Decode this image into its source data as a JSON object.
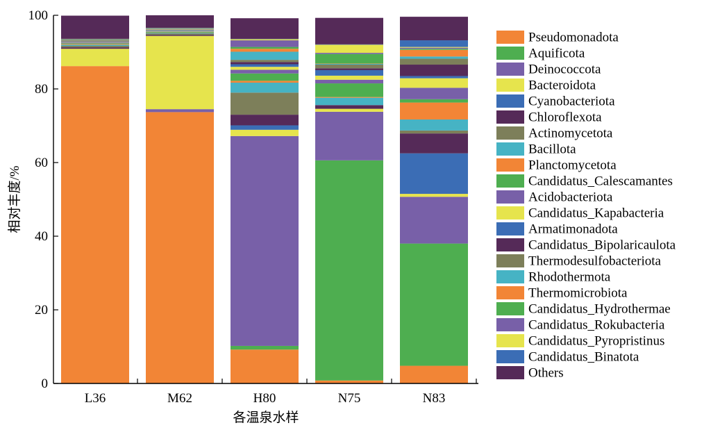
{
  "chart_data": {
    "type": "bar",
    "stacked": true,
    "xlabel": "各温泉水样",
    "ylabel": "相对丰度/%",
    "ylim": [
      0,
      100
    ],
    "yticks": [
      0,
      20,
      40,
      60,
      80,
      100
    ],
    "legend_position": "right",
    "categories": [
      "L36",
      "M62",
      "H80",
      "N75",
      "N83"
    ],
    "series": [
      {
        "name": "Pseudomonadota",
        "color": "#f28536",
        "values": [
          86.2,
          73.7,
          9.2,
          0.8,
          4.8
        ]
      },
      {
        "name": "Aquificota",
        "color": "#4eae50",
        "values": [
          0,
          0,
          1.0,
          59.8,
          33.2
        ]
      },
      {
        "name": "Deinococcota",
        "color": "#7860a8",
        "values": [
          0,
          0.8,
          57.0,
          13.2,
          12.7
        ]
      },
      {
        "name": "Bacteroidota",
        "color": "#e6e44d",
        "values": [
          4.7,
          19.9,
          1.7,
          0.8,
          0.8
        ]
      },
      {
        "name": "Cyanobacteriota",
        "color": "#3b6db5",
        "values": [
          0,
          0,
          1.2,
          0,
          11.0
        ]
      },
      {
        "name": "Chloroflexota",
        "color": "#552a58",
        "values": [
          0.4,
          0.3,
          2.9,
          1.0,
          5.4
        ]
      },
      {
        "name": "Actinomycetota",
        "color": "#7d7f5a",
        "values": [
          0.4,
          0.3,
          6.0,
          0,
          0.8
        ]
      },
      {
        "name": "Bacillota",
        "color": "#46b3c4",
        "values": [
          0.3,
          0.2,
          2.7,
          2.0,
          3.0
        ]
      },
      {
        "name": "Planctomycetota",
        "color": "#f28536",
        "values": [
          0.2,
          0.1,
          0.5,
          0.2,
          4.6
        ]
      },
      {
        "name": "Candidatus_Calescamantes",
        "color": "#4eae50",
        "values": [
          0.2,
          0.2,
          2.0,
          3.7,
          0.9
        ]
      },
      {
        "name": "Acidobacteriota",
        "color": "#7860a8",
        "values": [
          0.2,
          0.1,
          1.0,
          1.0,
          3.1
        ]
      },
      {
        "name": "Candidatus_Kapabacteria",
        "color": "#e6e44d",
        "values": [
          0.1,
          0.1,
          0.8,
          1.1,
          2.6
        ]
      },
      {
        "name": "Armatimonadota",
        "color": "#3b6db5",
        "values": [
          0.1,
          0.1,
          0.7,
          1.5,
          0.6
        ]
      },
      {
        "name": "Candidatus_Bipolaricaulota",
        "color": "#552a58",
        "values": [
          0.1,
          0.1,
          0.6,
          0.5,
          3.1
        ]
      },
      {
        "name": "Thermodesulfobacteriota",
        "color": "#7d7f5a",
        "values": [
          0.1,
          0.1,
          0.6,
          1.0,
          1.6
        ]
      },
      {
        "name": "Rhodothermota",
        "color": "#46b3c4",
        "values": [
          0.1,
          0.1,
          2.2,
          0.2,
          0.6
        ]
      },
      {
        "name": "Thermomicrobiota",
        "color": "#f28536",
        "values": [
          0.1,
          0.1,
          0.8,
          0.1,
          1.8
        ]
      },
      {
        "name": "Candidatus_Hydrothermae",
        "color": "#4eae50",
        "values": [
          0.1,
          0.1,
          0.5,
          2.6,
          0.3
        ]
      },
      {
        "name": "Candidatus_Rokubacteria",
        "color": "#7860a8",
        "values": [
          0.1,
          0.1,
          1.8,
          0.3,
          0.3
        ]
      },
      {
        "name": "Candidatus_Pyropristinus",
        "color": "#e6e44d",
        "values": [
          0.1,
          0.1,
          0.3,
          2.2,
          0.2
        ]
      },
      {
        "name": "Candidatus_Binatota",
        "color": "#3b6db5",
        "values": [
          0.1,
          0.1,
          0.1,
          0.1,
          1.8
        ]
      },
      {
        "name": "Others",
        "color": "#552a58",
        "values": [
          6.3,
          3.4,
          5.6,
          7.2,
          6.4
        ]
      }
    ]
  }
}
